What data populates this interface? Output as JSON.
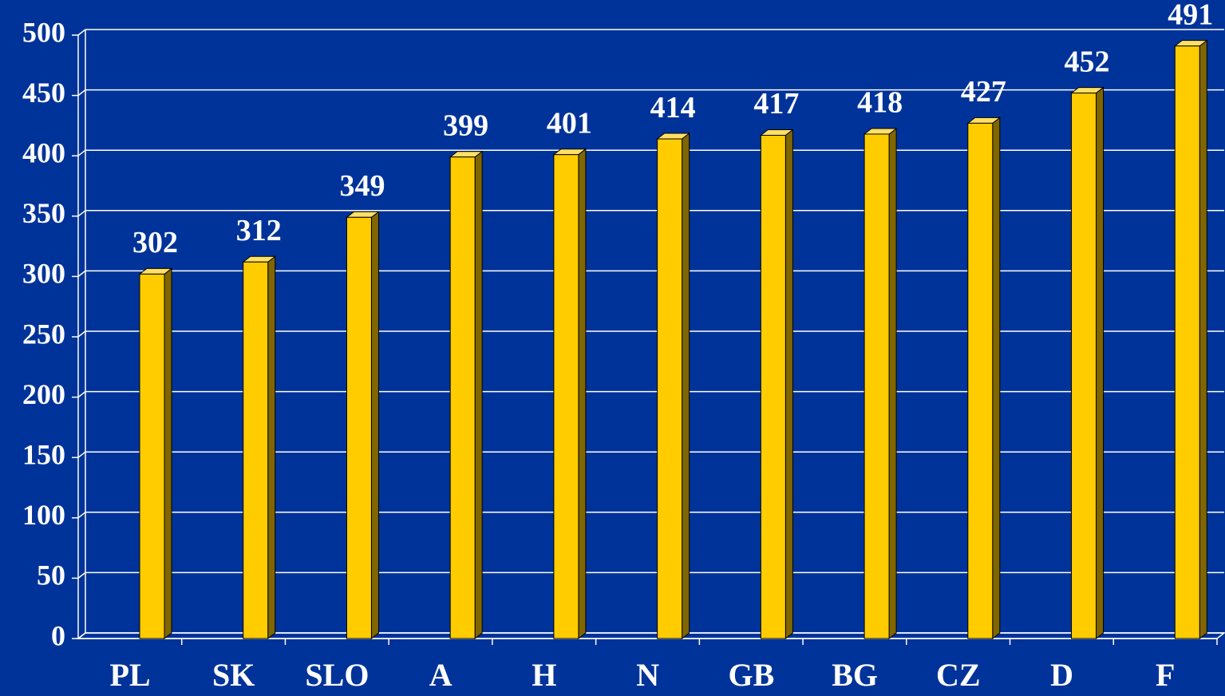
{
  "chart_data": {
    "type": "bar",
    "categories": [
      "PL",
      "SK",
      "SLO",
      "A",
      "H",
      "N",
      "GB",
      "BG",
      "CZ",
      "D",
      "F"
    ],
    "values": [
      302,
      312,
      349,
      399,
      401,
      414,
      417,
      418,
      427,
      452,
      491
    ],
    "color": "#ffcc00",
    "ylim": [
      0,
      500
    ],
    "yticks": [
      0,
      50,
      100,
      150,
      200,
      250,
      300,
      350,
      400,
      450,
      500
    ],
    "grid": true
  }
}
